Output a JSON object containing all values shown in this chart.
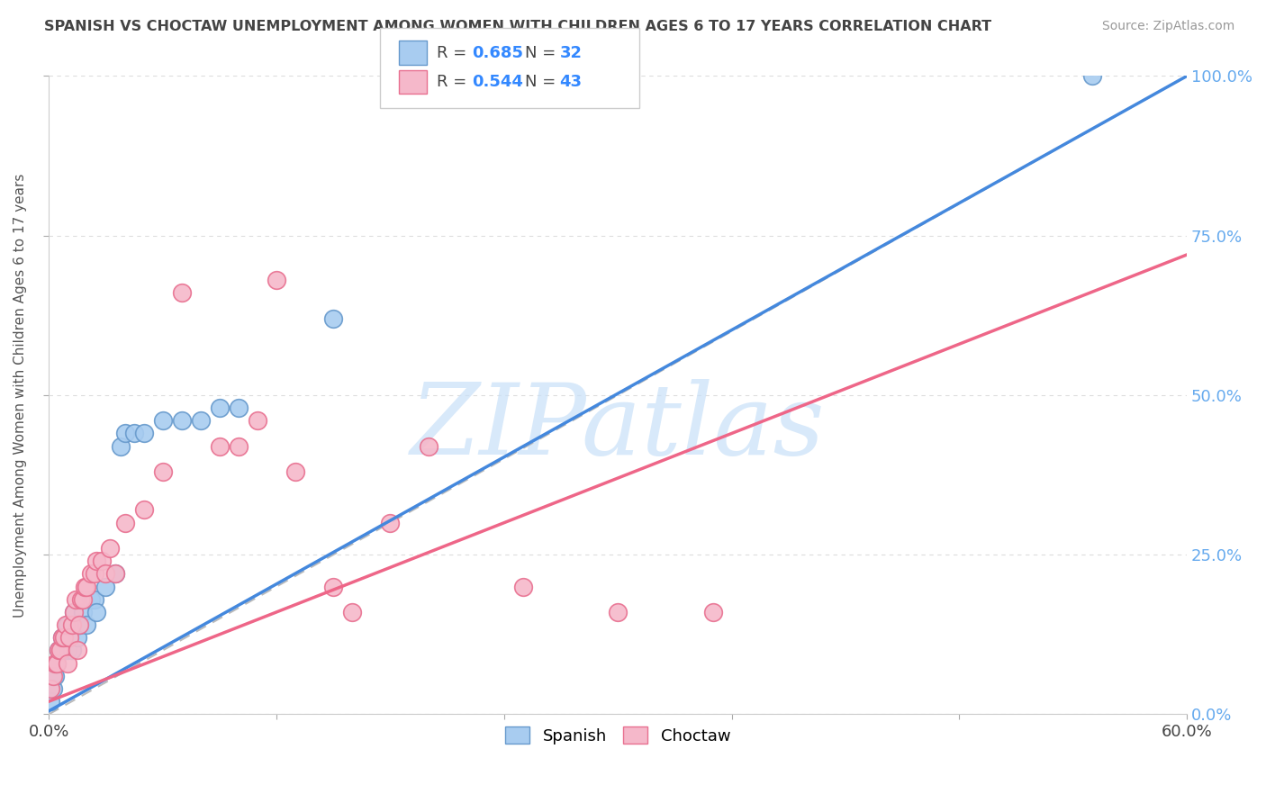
{
  "title": "SPANISH VS CHOCTAW UNEMPLOYMENT AMONG WOMEN WITH CHILDREN AGES 6 TO 17 YEARS CORRELATION CHART",
  "source": "Source: ZipAtlas.com",
  "ylabel": "Unemployment Among Women with Children Ages 6 to 17 years",
  "legend_blue_r": "R = 0.685",
  "legend_blue_n": "N = 32",
  "legend_pink_r": "R = 0.544",
  "legend_pink_n": "N = 43",
  "watermark": "ZIPatlas",
  "blue_color": "#A8CCF0",
  "pink_color": "#F5B8CA",
  "blue_edge_color": "#6699CC",
  "pink_edge_color": "#E87090",
  "blue_line_color": "#4488DD",
  "pink_line_color": "#EE6688",
  "legend_r_color": "#444444",
  "legend_n_color": "#3388FF",
  "title_color": "#444444",
  "source_color": "#999999",
  "watermark_color": "#C8E0F8",
  "right_axis_color": "#66AAEE",
  "background_color": "#FFFFFF",
  "grid_color": "#DDDDDD",
  "xmin": 0.0,
  "xmax": 0.6,
  "ymin": 0.0,
  "ymax": 1.0,
  "blue_scatter_x": [
    0.001,
    0.002,
    0.003,
    0.004,
    0.005,
    0.006,
    0.007,
    0.008,
    0.01,
    0.01,
    0.012,
    0.013,
    0.015,
    0.016,
    0.018,
    0.02,
    0.022,
    0.024,
    0.025,
    0.03,
    0.035,
    0.038,
    0.04,
    0.045,
    0.05,
    0.06,
    0.07,
    0.08,
    0.09,
    0.1,
    0.15,
    0.55
  ],
  "blue_scatter_y": [
    0.02,
    0.04,
    0.06,
    0.08,
    0.1,
    0.1,
    0.12,
    0.12,
    0.1,
    0.14,
    0.1,
    0.16,
    0.12,
    0.14,
    0.16,
    0.14,
    0.18,
    0.18,
    0.16,
    0.2,
    0.22,
    0.42,
    0.44,
    0.44,
    0.44,
    0.46,
    0.46,
    0.46,
    0.48,
    0.48,
    0.62,
    1.0
  ],
  "pink_scatter_x": [
    0.001,
    0.002,
    0.003,
    0.004,
    0.005,
    0.006,
    0.007,
    0.008,
    0.009,
    0.01,
    0.011,
    0.012,
    0.013,
    0.014,
    0.015,
    0.016,
    0.017,
    0.018,
    0.019,
    0.02,
    0.022,
    0.024,
    0.025,
    0.028,
    0.03,
    0.032,
    0.035,
    0.04,
    0.05,
    0.06,
    0.07,
    0.09,
    0.1,
    0.11,
    0.12,
    0.13,
    0.15,
    0.16,
    0.18,
    0.2,
    0.25,
    0.3,
    0.35
  ],
  "pink_scatter_y": [
    0.04,
    0.06,
    0.08,
    0.08,
    0.1,
    0.1,
    0.12,
    0.12,
    0.14,
    0.08,
    0.12,
    0.14,
    0.16,
    0.18,
    0.1,
    0.14,
    0.18,
    0.18,
    0.2,
    0.2,
    0.22,
    0.22,
    0.24,
    0.24,
    0.22,
    0.26,
    0.22,
    0.3,
    0.32,
    0.38,
    0.66,
    0.42,
    0.42,
    0.46,
    0.68,
    0.38,
    0.2,
    0.16,
    0.3,
    0.42,
    0.2,
    0.16,
    0.16
  ],
  "blue_line_x0": 0.0,
  "blue_line_x1": 0.6,
  "blue_line_y0": 0.005,
  "blue_line_y1": 1.0,
  "pink_line_x0": 0.0,
  "pink_line_x1": 0.6,
  "pink_line_y0": 0.02,
  "pink_line_y1": 0.72,
  "ref_line_x0": 0.0,
  "ref_line_x1": 0.6,
  "ref_line_y0": 0.0,
  "ref_line_y1": 1.0,
  "ytick_vals": [
    0.0,
    0.25,
    0.5,
    0.75,
    1.0
  ],
  "ytick_labels_right": [
    "0.0%",
    "25.0%",
    "50.0%",
    "75.0%",
    "100.0%"
  ]
}
